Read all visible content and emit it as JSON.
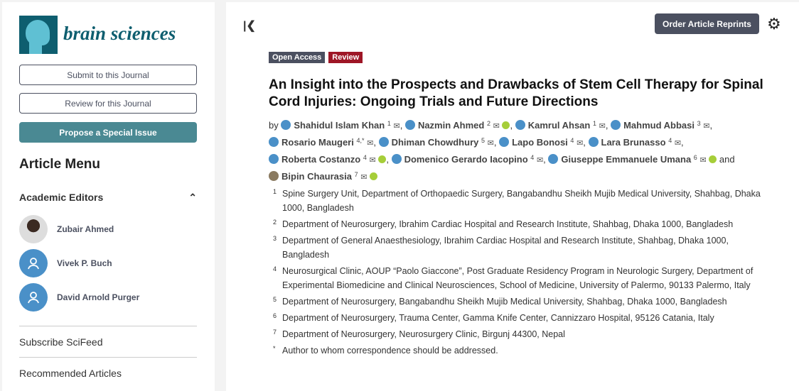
{
  "sidebar": {
    "journal_name": "brain sciences",
    "buttons": {
      "submit": "Submit to this Journal",
      "review": "Review for this Journal",
      "propose": "Propose a Special Issue"
    },
    "menu_title": "Article Menu",
    "editors_heading": "Academic Editors",
    "editors": [
      {
        "name": "Zubair Ahmed",
        "photo": true
      },
      {
        "name": "Vivek P. Buch",
        "photo": false
      },
      {
        "name": "David Arnold Purger",
        "photo": false
      }
    ],
    "items": [
      "Subscribe SciFeed",
      "Recommended Articles"
    ]
  },
  "main": {
    "collapse_icon": "collapse-left-icon",
    "order_reprints": "Order Article Reprints",
    "settings_icon": "gear-icon",
    "badges": [
      {
        "label": "Open Access",
        "color": "#4b5060"
      },
      {
        "label": "Review",
        "color": "#9e1626"
      }
    ],
    "title": "An Insight into the Prospects and Drawbacks of Stem Cell Therapy for Spinal Cord Injuries: Ongoing Trials and Future Directions",
    "by": "by",
    "and": "and",
    "authors": [
      {
        "name": "Shahidul Islam Khan",
        "sup": "1",
        "orcid": false
      },
      {
        "name": "Nazmin Ahmed",
        "sup": "2",
        "orcid": true
      },
      {
        "name": "Kamrul Ahsan",
        "sup": "1",
        "orcid": false
      },
      {
        "name": "Mahmud Abbasi",
        "sup": "3",
        "orcid": false
      },
      {
        "name": "Rosario Maugeri",
        "sup": "4,*",
        "orcid": false
      },
      {
        "name": "Dhiman Chowdhury",
        "sup": "5",
        "orcid": false
      },
      {
        "name": "Lapo Bonosi",
        "sup": "4",
        "orcid": false
      },
      {
        "name": "Lara Brunasso",
        "sup": "4",
        "orcid": false
      },
      {
        "name": "Roberta Costanzo",
        "sup": "4",
        "orcid": true
      },
      {
        "name": "Domenico Gerardo Iacopino",
        "sup": "4",
        "orcid": false
      },
      {
        "name": "Giuseppe Emmanuele Umana",
        "sup": "6",
        "orcid": true
      },
      {
        "name": "Bipin Chaurasia",
        "sup": "7",
        "orcid": true,
        "photo": true
      }
    ],
    "affiliations": [
      {
        "n": "1",
        "text": "Spine Surgery Unit, Department of Orthopaedic Surgery, Bangabandhu Sheikh Mujib Medical University, Shahbag, Dhaka 1000, Bangladesh"
      },
      {
        "n": "2",
        "text": "Department of Neurosurgery, Ibrahim Cardiac Hospital and Research Institute, Shahbag, Dhaka 1000, Bangladesh"
      },
      {
        "n": "3",
        "text": "Department of General Anaesthesiology, Ibrahim Cardiac Hospital and Research Institute, Shahbag, Dhaka 1000, Bangladesh"
      },
      {
        "n": "4",
        "text": "Neurosurgical Clinic, AOUP “Paolo Giaccone”, Post Graduate Residency Program in Neurologic Surgery, Department of Experimental Biomedicine and Clinical Neurosciences, School of Medicine, University of Palermo, 90133 Palermo, Italy"
      },
      {
        "n": "5",
        "text": "Department of Neurosurgery, Bangabandhu Sheikh Mujib Medical University, Shahbag, Dhaka 1000, Bangladesh"
      },
      {
        "n": "6",
        "text": "Department of Neurosurgery, Trauma Center, Gamma Knife Center, Cannizzaro Hospital, 95126 Catania, Italy"
      },
      {
        "n": "7",
        "text": "Department of Neurosurgery, Neurosurgery Clinic, Birgunj 44300, Nepal"
      },
      {
        "n": "*",
        "text": "Author to whom correspondence should be addressed."
      }
    ]
  }
}
